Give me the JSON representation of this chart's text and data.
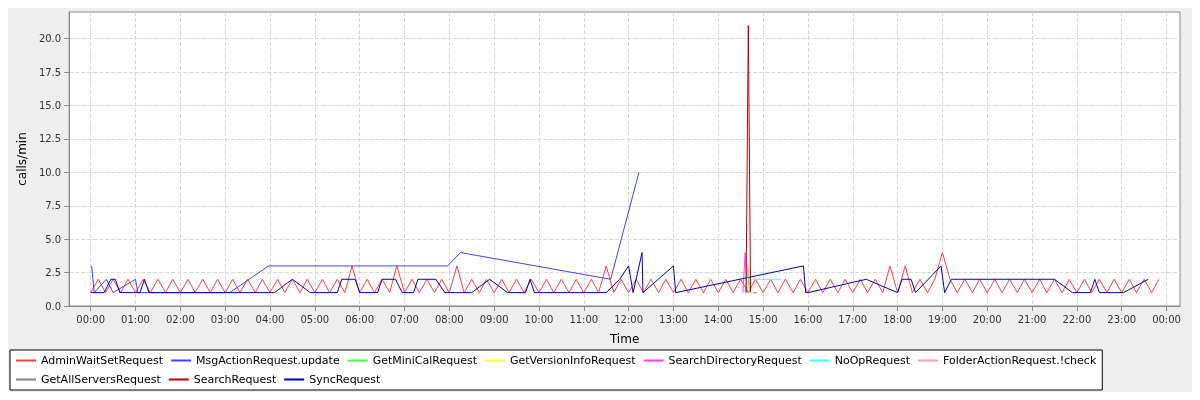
{
  "chart_data": {
    "type": "line",
    "xlabel": "Time",
    "ylabel": "calls/min",
    "xlim": [
      -0.48,
      24.3
    ],
    "ylim": [
      0,
      22
    ],
    "xticks": [
      {
        "value": 0,
        "label": "00:00"
      },
      {
        "value": 1,
        "label": "01:00"
      },
      {
        "value": 2,
        "label": "02:00"
      },
      {
        "value": 3,
        "label": "03:00"
      },
      {
        "value": 4,
        "label": "04:00"
      },
      {
        "value": 5,
        "label": "05:00"
      },
      {
        "value": 6,
        "label": "06:00"
      },
      {
        "value": 7,
        "label": "07:00"
      },
      {
        "value": 8,
        "label": "08:00"
      },
      {
        "value": 9,
        "label": "09:00"
      },
      {
        "value": 10,
        "label": "10:00"
      },
      {
        "value": 11,
        "label": "11:00"
      },
      {
        "value": 12,
        "label": "12:00"
      },
      {
        "value": 13,
        "label": "13:00"
      },
      {
        "value": 14,
        "label": "14:00"
      },
      {
        "value": 15,
        "label": "15:00"
      },
      {
        "value": 16,
        "label": "16:00"
      },
      {
        "value": 17,
        "label": "17:00"
      },
      {
        "value": 18,
        "label": "18:00"
      },
      {
        "value": 19,
        "label": "19:00"
      },
      {
        "value": 20,
        "label": "20:00"
      },
      {
        "value": 21,
        "label": "21:00"
      },
      {
        "value": 22,
        "label": "22:00"
      },
      {
        "value": 23,
        "label": "23:00"
      },
      {
        "value": 24,
        "label": "00:00"
      }
    ],
    "yticks": [
      {
        "value": 0,
        "label": "0.0"
      },
      {
        "value": 2.5,
        "label": "2.5"
      },
      {
        "value": 5,
        "label": "5.0"
      },
      {
        "value": 7.5,
        "label": "7.5"
      },
      {
        "value": 10,
        "label": "10.0"
      },
      {
        "value": 12.5,
        "label": "12.5"
      },
      {
        "value": 15,
        "label": "15.0"
      },
      {
        "value": 17.5,
        "label": "17.5"
      },
      {
        "value": 20,
        "label": "20.0"
      }
    ],
    "grid": true,
    "legend": "bottom",
    "marker": "none",
    "line_style": "solid",
    "series": [
      {
        "name": "AdminWaitSetRequest",
        "color": "#ff4040",
        "x": [
          0.0,
          0.17,
          0.33,
          0.5,
          0.67,
          0.83,
          1.0,
          1.17,
          1.33,
          1.5,
          1.67,
          1.83,
          2.0,
          2.17,
          2.33,
          2.5,
          2.67,
          2.83,
          3.0,
          3.17,
          3.33,
          3.5,
          3.67,
          3.83,
          4.0,
          4.17,
          4.33,
          4.5,
          4.67,
          4.83,
          5.0,
          5.17,
          5.33,
          5.5,
          5.67,
          5.83,
          6.0,
          6.17,
          6.33,
          6.5,
          6.67,
          6.83,
          7.0,
          7.17,
          7.33,
          7.5,
          7.67,
          7.83,
          8.0,
          8.17,
          8.33,
          8.5,
          8.67,
          8.83,
          9.0,
          9.17,
          9.33,
          9.5,
          9.67,
          9.83,
          10.0,
          10.17,
          10.33,
          10.5,
          10.67,
          10.83,
          11.0,
          11.17,
          11.33,
          11.5,
          11.67,
          11.83,
          12.0,
          12.17,
          12.33,
          12.5,
          12.67,
          12.83,
          13.0,
          13.17,
          13.33,
          13.5,
          13.67,
          13.83,
          14.0,
          14.17,
          14.33,
          14.5,
          14.67,
          14.83,
          15.0,
          15.17,
          15.33,
          15.5,
          15.67,
          15.83,
          16.0,
          16.17,
          16.33,
          16.5,
          16.67,
          16.83,
          17.0,
          17.17,
          17.33,
          17.5,
          17.67,
          17.83,
          18.0,
          18.17,
          18.33,
          18.5,
          18.67,
          18.83,
          19.0,
          19.17,
          19.33,
          19.5,
          19.67,
          19.83,
          20.0,
          20.17,
          20.33,
          20.5,
          20.67,
          20.83,
          21.0,
          21.17,
          21.33,
          21.5,
          21.67,
          21.83,
          22.0,
          22.17,
          22.33,
          22.5,
          22.67,
          22.83,
          23.0,
          23.17,
          23.33,
          23.5,
          23.67,
          23.83
        ],
        "values": [
          1,
          2,
          1,
          2,
          1,
          2,
          1,
          2,
          1,
          2,
          1,
          2,
          1,
          2,
          1,
          2,
          1,
          2,
          1,
          2,
          1,
          2,
          1,
          2,
          1,
          2,
          1,
          2,
          1,
          2,
          1,
          2,
          1,
          2,
          1,
          3,
          1,
          2,
          1,
          2,
          1,
          3,
          1,
          2,
          1,
          2,
          1,
          2,
          1,
          3,
          1,
          2,
          1,
          2,
          1,
          2,
          1,
          2,
          1,
          2,
          1,
          2,
          1,
          2,
          1,
          2,
          1,
          2,
          1,
          3,
          1,
          2,
          1,
          2,
          1,
          2,
          1,
          2,
          1,
          2,
          1,
          2,
          1,
          2,
          1,
          2,
          1,
          2,
          1,
          2,
          1,
          2,
          1,
          2,
          1,
          2,
          1,
          2,
          1,
          2,
          1,
          2,
          1,
          2,
          1,
          2,
          1,
          3,
          1,
          3,
          1,
          2,
          1,
          2,
          4,
          2,
          1,
          2,
          1,
          2,
          1,
          2,
          1,
          2,
          1,
          2,
          1,
          2,
          1,
          2,
          1,
          2,
          1,
          2,
          1,
          2,
          1,
          2,
          1,
          2,
          1,
          2,
          1,
          2
        ]
      },
      {
        "name": "MsgActionRequest.update",
        "color": "#4040ff",
        "x": [
          0.02,
          0.08,
          0.35,
          0.5,
          1.0,
          1.05,
          3.1,
          3.97,
          7.96,
          8.25,
          11.6,
          12.23
        ],
        "values": [
          3,
          1,
          2,
          1,
          2,
          1,
          1,
          3,
          3,
          4,
          2,
          10
        ]
      },
      {
        "name": "GetMiniCalRequest",
        "color": "#40ff40",
        "x": [
          14.65,
          14.7
        ],
        "values": [
          2.5,
          1
        ]
      },
      {
        "name": "GetVersionInfoRequest",
        "color": "#ffff40",
        "x": [
          14.7,
          14.78
        ],
        "values": [
          1,
          1
        ]
      },
      {
        "name": "SearchDirectoryRequest",
        "color": "#ff40ff",
        "x": [
          14.55,
          14.6,
          14.64
        ],
        "values": [
          1,
          4,
          1
        ]
      },
      {
        "name": "NoOpRequest",
        "color": "#40ffff",
        "x": [
          14.77,
          15.4
        ],
        "values": [
          2,
          2
        ]
      },
      {
        "name": "FolderActionRequest.!check",
        "color": "#ffa0a0",
        "x": [
          14.6,
          14.66,
          14.72
        ],
        "values": [
          1,
          3,
          1
        ]
      },
      {
        "name": "GetAllServersRequest",
        "color": "#808080",
        "x": [
          14.78,
          14.86
        ],
        "values": [
          1,
          1
        ]
      },
      {
        "name": "SearchRequest",
        "color": "#c00000",
        "x": [
          14.62,
          14.67,
          14.72
        ],
        "values": [
          1,
          21,
          1
        ]
      },
      {
        "name": "SyncRequest",
        "color": "#0000c0",
        "x": [
          0.0,
          0.3,
          0.45,
          0.55,
          0.65,
          1.1,
          1.2,
          1.3,
          4.1,
          4.5,
          4.9,
          5.5,
          5.6,
          5.9,
          6.0,
          6.4,
          6.5,
          6.8,
          6.95,
          7.2,
          7.3,
          7.7,
          7.9,
          8.5,
          8.9,
          9.3,
          9.7,
          9.8,
          9.9,
          11.5,
          11.8,
          12.0,
          12.1,
          12.3,
          12.32,
          13.0,
          13.05,
          15.9,
          15.95,
          16.0,
          17.3,
          18.0,
          18.1,
          18.3,
          18.4,
          18.97,
          19.05,
          19.2,
          21.5,
          21.9,
          22.3,
          22.4,
          22.5,
          23.04,
          23.59
        ],
        "values": [
          1,
          1,
          2,
          2,
          1,
          1,
          2,
          1,
          1,
          2,
          1,
          1,
          2,
          2,
          1,
          1,
          2,
          2,
          1,
          1,
          2,
          2,
          1,
          1,
          2,
          1,
          1,
          2,
          1,
          1,
          2,
          3,
          1,
          4,
          1,
          3,
          1,
          3,
          1,
          1,
          2,
          1,
          2,
          2,
          1,
          3,
          1,
          2,
          2,
          1,
          1,
          2,
          1,
          1,
          2
        ]
      }
    ]
  }
}
